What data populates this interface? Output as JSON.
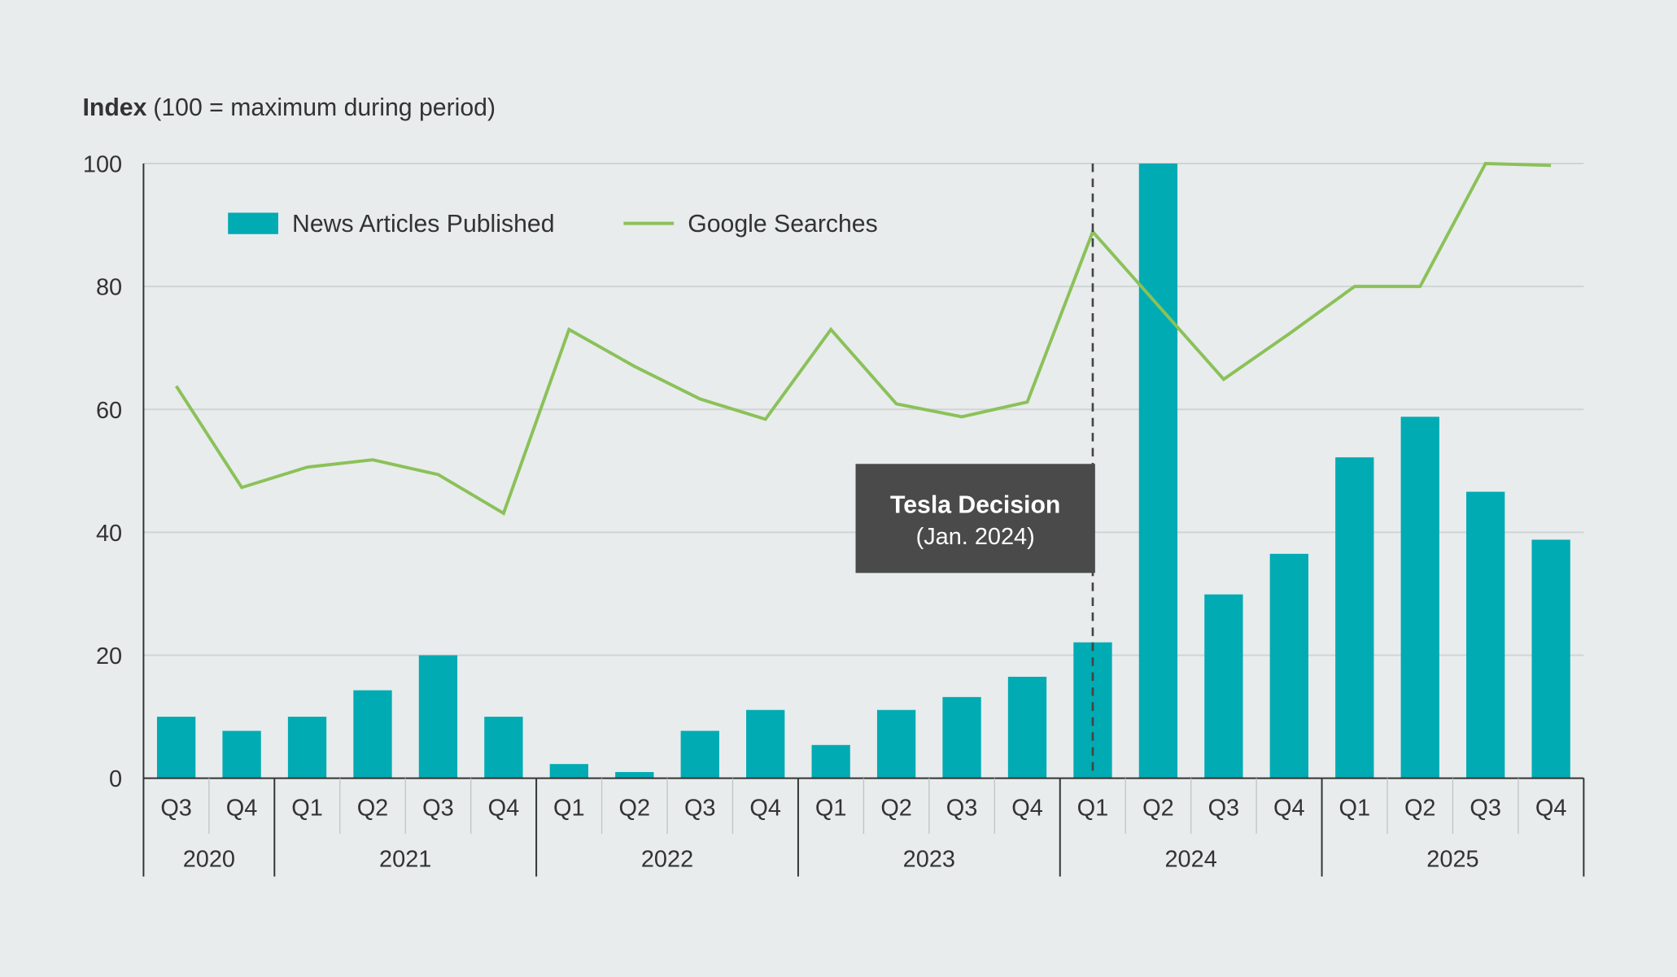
{
  "chart_data": {
    "type": "bar+line",
    "ylabel_bold": "Index",
    "ylabel_rest": "(100 = maximum during period)",
    "ylim": [
      0,
      100
    ],
    "yticks": [
      "0",
      "20",
      "40",
      "60",
      "80",
      "100"
    ],
    "grid": true,
    "legend_placement": "top-left",
    "categories": [
      "Q3",
      "Q4",
      "Q1",
      "Q2",
      "Q3",
      "Q4",
      "Q1",
      "Q2",
      "Q3",
      "Q4",
      "Q1",
      "Q2",
      "Q3",
      "Q4",
      "Q1",
      "Q2",
      "Q3",
      "Q4",
      "Q1",
      "Q2",
      "Q3",
      "Q4"
    ],
    "years": [
      {
        "label": "2020",
        "quarters": 2
      },
      {
        "label": "2021",
        "quarters": 4
      },
      {
        "label": "2022",
        "quarters": 4
      },
      {
        "label": "2023",
        "quarters": 4
      },
      {
        "label": "2024",
        "quarters": 4
      },
      {
        "label": "2025",
        "quarters": 4
      }
    ],
    "series": [
      {
        "name": "News Articles Published",
        "type": "bar",
        "color": "#00abb3",
        "values": [
          10,
          7.7,
          10,
          14.3,
          20,
          10,
          2.3,
          1.0,
          7.7,
          11.1,
          5.4,
          11.1,
          13.2,
          16.5,
          22.1,
          100,
          29.9,
          36.5,
          52.2,
          58.8,
          46.6,
          38.8
        ]
      },
      {
        "name": "Google Searches",
        "type": "line",
        "color": "#8bc159",
        "values": [
          63.8,
          47.3,
          50.6,
          51.8,
          49.4,
          43.1,
          73.0,
          67.0,
          61.7,
          58.4,
          73.0,
          60.9,
          58.8,
          61.2,
          88.9,
          76.9,
          64.9,
          72.3,
          80,
          80,
          100,
          99.7
        ]
      }
    ],
    "annotation": {
      "title": "Tesla Decision",
      "subtitle": "(Jan. 2024)",
      "at_category_index": 14,
      "box_color": "#4a4a4a"
    }
  }
}
